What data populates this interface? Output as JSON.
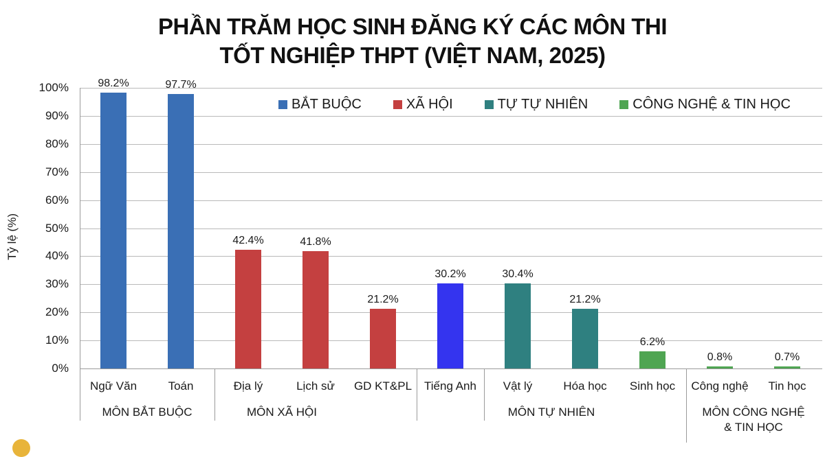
{
  "title": {
    "line1": "PHẦN TRĂM HỌC SINH ĐĂNG KÝ CÁC MÔN THI",
    "line2": "TỐT NGHIỆP THPT (VIỆT NAM, 2025)"
  },
  "y_axis": {
    "label": "Tỷ lệ (%)",
    "ticks": [
      "100%",
      "90%",
      "80%",
      "70%",
      "60%",
      "50%",
      "40%",
      "30%",
      "20%",
      "10%",
      "0%"
    ]
  },
  "legend": [
    {
      "label": "BẮT BUỘC",
      "color": "#3a6fb5"
    },
    {
      "label": "XÃ HỘI",
      "color": "#c44040"
    },
    {
      "label": "TỰ TỰ NHIÊN",
      "color": "#2f8080"
    },
    {
      "label": "CÔNG NGHỆ & TIN HỌC",
      "color": "#4fa552"
    }
  ],
  "bars": [
    {
      "label": "Ngữ Văn",
      "value_text": "98.2%",
      "value": 98.2,
      "color": "#3a6fb5"
    },
    {
      "label": "Toán",
      "value_text": "97.7%",
      "value": 97.7,
      "color": "#3a6fb5"
    },
    {
      "label": "Địa lý",
      "value_text": "42.4%",
      "value": 42.4,
      "color": "#c44040"
    },
    {
      "label": "Lịch sử",
      "value_text": "41.8%",
      "value": 41.8,
      "color": "#c44040"
    },
    {
      "label": "GD KT&PL",
      "value_text": "21.2%",
      "value": 21.2,
      "color": "#c44040"
    },
    {
      "label": "Tiếng Anh",
      "value_text": "30.2%",
      "value": 30.2,
      "color": "#3434ef"
    },
    {
      "label": "Vật lý",
      "value_text": "30.4%",
      "value": 30.4,
      "color": "#2f8080"
    },
    {
      "label": "Hóa học",
      "value_text": "21.2%",
      "value": 21.2,
      "color": "#2f8080"
    },
    {
      "label": "Sinh học",
      "value_text": "6.2%",
      "value": 6.2,
      "color": "#4fa552"
    },
    {
      "label": "Công nghệ",
      "value_text": "0.8%",
      "value": 0.8,
      "color": "#4fa552"
    },
    {
      "label": "Tin học",
      "value_text": "0.7%",
      "value": 0.7,
      "color": "#4fa552"
    }
  ],
  "groups": [
    {
      "label": "MÔN BẮT BUỘC"
    },
    {
      "label": "MÔN XÃ HỘI"
    },
    {
      "label": "MÔN TỰ NHIÊN"
    },
    {
      "label_line1": "MÔN CÔNG NGHỆ",
      "label_line2": "& TIN HỌC"
    }
  ],
  "chart_data": {
    "type": "bar",
    "title": "PHẦN TRĂM HỌC SINH ĐĂNG KÝ CÁC MÔN THI TỐT NGHIỆP THPT (VIỆT NAM, 2025)",
    "xlabel": "",
    "ylabel": "Tỷ lệ (%)",
    "ylim": [
      0,
      100
    ],
    "yticks": [
      0,
      10,
      20,
      30,
      40,
      50,
      60,
      70,
      80,
      90,
      100
    ],
    "grid": true,
    "legend_position": "top-right inside plot",
    "categories": [
      "Ngữ Văn",
      "Toán",
      "Địa lý",
      "Lịch sử",
      "GD KT&PL",
      "Tiếng Anh",
      "Vật lý",
      "Hóa học",
      "Sinh học",
      "Công nghệ",
      "Tin học"
    ],
    "values": [
      98.2,
      97.7,
      42.4,
      41.8,
      21.2,
      30.2,
      30.4,
      21.2,
      6.2,
      0.8,
      0.7
    ],
    "category_groups": [
      {
        "name": "MÔN BẮT BUỘC",
        "categories": [
          "Ngữ Văn",
          "Toán"
        ]
      },
      {
        "name": "MÔN XÃ HỘI",
        "categories": [
          "Địa lý",
          "Lịch sử",
          "GD KT&PL"
        ]
      },
      {
        "name": "",
        "categories": [
          "Tiếng Anh"
        ]
      },
      {
        "name": "MÔN TỰ NHIÊN",
        "categories": [
          "Vật lý",
          "Hóa học",
          "Sinh học"
        ]
      },
      {
        "name": "MÔN CÔNG NGHỆ & TIN HỌC",
        "categories": [
          "Công nghệ",
          "Tin học"
        ]
      }
    ],
    "legend": [
      "BẮT BUỘC",
      "XÃ HỘI",
      "TỰ TỰ NHIÊN",
      "CÔNG NGHỆ & TIN HỌC"
    ],
    "data_labels": [
      "98.2%",
      "97.7%",
      "42.4%",
      "41.8%",
      "21.2%",
      "30.2%",
      "30.4%",
      "21.2%",
      "6.2%",
      "0.8%",
      "0.7%"
    ]
  }
}
